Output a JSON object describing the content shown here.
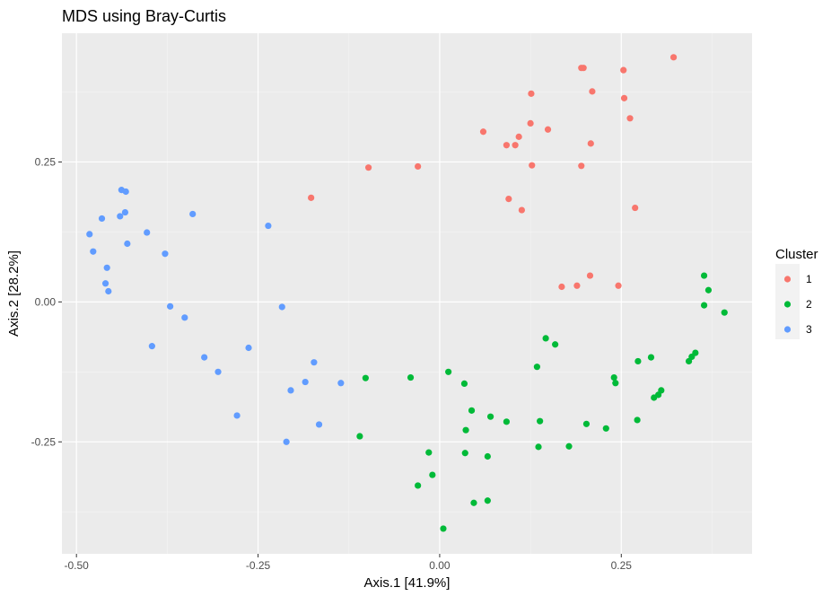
{
  "chart_data": {
    "type": "scatter",
    "title": "MDS using Bray-Curtis",
    "xlabel": "Axis.1   [41.9%]",
    "ylabel": "Axis.2   [28.2%]",
    "xlim": [
      -0.52,
      0.43
    ],
    "ylim": [
      -0.45,
      0.48
    ],
    "x_ticks": [
      -0.5,
      -0.25,
      0.0,
      0.25
    ],
    "x_tick_labels": [
      "-0.50",
      "-0.25",
      "0.00",
      "0.25"
    ],
    "y_ticks": [
      -0.25,
      0.0,
      0.25
    ],
    "y_tick_labels": [
      "-0.25",
      "0.00",
      "0.25"
    ],
    "grid": true,
    "legend": {
      "title": "Cluster",
      "placement": "right"
    },
    "series": [
      {
        "name": "1",
        "color": "#F8766D",
        "points": [
          [
            0.195,
            0.418
          ],
          [
            0.198,
            0.418
          ],
          [
            0.253,
            0.414
          ],
          [
            0.322,
            0.437
          ],
          [
            0.126,
            0.372
          ],
          [
            0.21,
            0.376
          ],
          [
            0.254,
            0.364
          ],
          [
            0.262,
            0.328
          ],
          [
            0.125,
            0.319
          ],
          [
            0.149,
            0.308
          ],
          [
            0.06,
            0.304
          ],
          [
            0.109,
            0.295
          ],
          [
            0.092,
            0.28
          ],
          [
            0.104,
            0.28
          ],
          [
            0.208,
            0.283
          ],
          [
            -0.098,
            0.24
          ],
          [
            -0.03,
            0.242
          ],
          [
            0.127,
            0.244
          ],
          [
            0.195,
            0.243
          ],
          [
            -0.177,
            0.186
          ],
          [
            0.095,
            0.184
          ],
          [
            0.113,
            0.164
          ],
          [
            0.269,
            0.168
          ],
          [
            0.207,
            0.047
          ],
          [
            0.168,
            0.027
          ],
          [
            0.189,
            0.029
          ],
          [
            0.246,
            0.029
          ]
        ]
      },
      {
        "name": "2",
        "color": "#00BA38",
        "points": [
          [
            0.364,
            0.047
          ],
          [
            0.37,
            0.021
          ],
          [
            0.364,
            -0.006
          ],
          [
            0.392,
            -0.019
          ],
          [
            0.146,
            -0.065
          ],
          [
            0.159,
            -0.076
          ],
          [
            0.352,
            -0.091
          ],
          [
            0.347,
            -0.098
          ],
          [
            0.291,
            -0.099
          ],
          [
            0.273,
            -0.106
          ],
          [
            0.343,
            -0.106
          ],
          [
            0.134,
            -0.116
          ],
          [
            -0.102,
            -0.136
          ],
          [
            -0.04,
            -0.135
          ],
          [
            0.012,
            -0.125
          ],
          [
            0.24,
            -0.135
          ],
          [
            0.242,
            -0.145
          ],
          [
            0.034,
            -0.146
          ],
          [
            0.305,
            -0.158
          ],
          [
            0.301,
            -0.166
          ],
          [
            0.295,
            -0.171
          ],
          [
            0.044,
            -0.194
          ],
          [
            0.07,
            -0.205
          ],
          [
            0.092,
            -0.214
          ],
          [
            0.138,
            -0.213
          ],
          [
            0.202,
            -0.218
          ],
          [
            0.272,
            -0.211
          ],
          [
            0.036,
            -0.229
          ],
          [
            0.229,
            -0.226
          ],
          [
            -0.11,
            -0.24
          ],
          [
            0.136,
            -0.259
          ],
          [
            0.178,
            -0.258
          ],
          [
            -0.015,
            -0.269
          ],
          [
            0.035,
            -0.27
          ],
          [
            0.066,
            -0.276
          ],
          [
            -0.01,
            -0.309
          ],
          [
            -0.03,
            -0.328
          ],
          [
            0.066,
            -0.355
          ],
          [
            0.047,
            -0.359
          ],
          [
            0.005,
            -0.405
          ]
        ]
      },
      {
        "name": "3",
        "color": "#619CFF",
        "points": [
          [
            -0.438,
            0.2
          ],
          [
            -0.432,
            0.197
          ],
          [
            -0.44,
            0.153
          ],
          [
            -0.433,
            0.16
          ],
          [
            -0.465,
            0.149
          ],
          [
            -0.34,
            0.157
          ],
          [
            -0.236,
            0.136
          ],
          [
            -0.403,
            0.124
          ],
          [
            -0.482,
            0.121
          ],
          [
            -0.43,
            0.104
          ],
          [
            -0.477,
            0.09
          ],
          [
            -0.378,
            0.086
          ],
          [
            -0.458,
            0.061
          ],
          [
            -0.46,
            0.033
          ],
          [
            -0.456,
            0.019
          ],
          [
            -0.371,
            -0.008
          ],
          [
            -0.217,
            -0.009
          ],
          [
            -0.351,
            -0.028
          ],
          [
            -0.396,
            -0.079
          ],
          [
            -0.263,
            -0.082
          ],
          [
            -0.324,
            -0.099
          ],
          [
            -0.305,
            -0.125
          ],
          [
            -0.173,
            -0.108
          ],
          [
            -0.185,
            -0.143
          ],
          [
            -0.136,
            -0.145
          ],
          [
            -0.205,
            -0.158
          ],
          [
            -0.279,
            -0.203
          ],
          [
            -0.166,
            -0.219
          ],
          [
            -0.211,
            -0.25
          ]
        ]
      }
    ]
  }
}
